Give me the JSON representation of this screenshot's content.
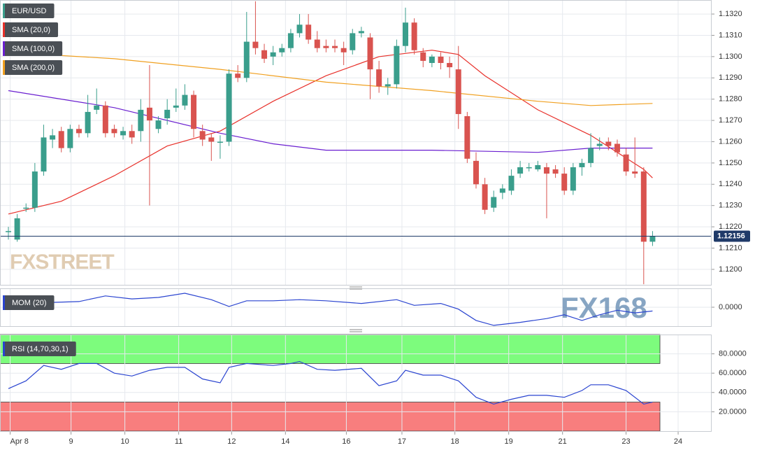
{
  "chart_data": [
    {
      "type": "candlestick",
      "name": "EUR/USD",
      "up_color": "#3a9e8c",
      "down_color": "#d9534f",
      "open": [
        1.1218,
        1.1214,
        1.1229,
        1.1229,
        1.1246,
        1.1261,
        1.1265,
        1.1257,
        1.1266,
        1.1264,
        1.1275,
        1.1277,
        1.1266,
        1.1263,
        1.1265,
        1.1265,
        1.1276,
        1.1266,
        1.1271,
        1.1276,
        1.1277,
        1.1282,
        1.1265,
        1.1262,
        1.126,
        1.126,
        1.1292,
        1.129,
        1.1307,
        1.1303,
        1.13,
        1.1302,
        1.1304,
        1.1311,
        1.1315,
        1.1308,
        1.1305,
        1.1305,
        1.1304,
        1.1303,
        1.1311,
        1.1309,
        1.1294,
        1.1286,
        1.1287,
        1.1305,
        1.1316,
        1.1302,
        1.1297,
        1.13,
        1.1297,
        1.1294,
        1.1272,
        1.1251,
        1.124,
        1.1229,
        1.1236,
        1.1237,
        1.1245,
        1.1248,
        1.1247,
        1.1248,
        1.1247,
        1.1245,
        1.1237,
        1.1248,
        1.125,
        1.1258,
        1.126,
        1.1259,
        1.1254,
        1.1246,
        1.1246,
        1.1213
      ],
      "high": [
        1.122,
        1.1226,
        1.1231,
        1.125,
        1.1268,
        1.1266,
        1.1267,
        1.1268,
        1.1268,
        1.1282,
        1.1285,
        1.1279,
        1.1268,
        1.1267,
        1.1268,
        1.128,
        1.1296,
        1.1272,
        1.128,
        1.1285,
        1.1287,
        1.1284,
        1.1268,
        1.1264,
        1.1263,
        1.1294,
        1.1296,
        1.1321,
        1.1326,
        1.1306,
        1.1305,
        1.1306,
        1.1313,
        1.132,
        1.132,
        1.1312,
        1.1308,
        1.1308,
        1.1307,
        1.1313,
        1.1314,
        1.1311,
        1.1298,
        1.129,
        1.1308,
        1.1323,
        1.1318,
        1.1304,
        1.1301,
        1.1302,
        1.13,
        1.1305,
        1.1274,
        1.1255,
        1.1243,
        1.1237,
        1.124,
        1.1247,
        1.1251,
        1.125,
        1.1251,
        1.125,
        1.1249,
        1.1248,
        1.125,
        1.1252,
        1.1264,
        1.1262,
        1.1262,
        1.1261,
        1.1257,
        1.1262,
        1.1248,
        1.1218
      ],
      "low": [
        1.1214,
        1.1213,
        1.1227,
        1.1227,
        1.1244,
        1.1257,
        1.1255,
        1.1255,
        1.1262,
        1.1262,
        1.1273,
        1.1262,
        1.1262,
        1.1261,
        1.1259,
        1.126,
        1.123,
        1.1264,
        1.1268,
        1.1274,
        1.1275,
        1.1262,
        1.1258,
        1.1251,
        1.1252,
        1.1258,
        1.1288,
        1.1288,
        1.1301,
        1.1297,
        1.1296,
        1.13,
        1.1302,
        1.1309,
        1.1306,
        1.1302,
        1.1302,
        1.1302,
        1.1296,
        1.1301,
        1.1309,
        1.128,
        1.1283,
        1.1282,
        1.1285,
        1.1302,
        1.1301,
        1.1295,
        1.1295,
        1.1294,
        1.129,
        1.1266,
        1.125,
        1.1238,
        1.1226,
        1.1227,
        1.1233,
        1.1235,
        1.1243,
        1.1246,
        1.1246,
        1.1224,
        1.1243,
        1.1235,
        1.1235,
        1.1244,
        1.1248,
        1.1256,
        1.1256,
        1.1253,
        1.1244,
        1.1243,
        1.1193,
        1.1211
      ],
      "close": [
        1.1218,
        1.1224,
        1.1229,
        1.1246,
        1.1262,
        1.1263,
        1.1257,
        1.1266,
        1.1264,
        1.1274,
        1.1277,
        1.1264,
        1.1264,
        1.1265,
        1.1262,
        1.1275,
        1.127,
        1.127,
        1.1275,
        1.1277,
        1.1282,
        1.1266,
        1.1261,
        1.126,
        1.126,
        1.1292,
        1.129,
        1.1307,
        1.1304,
        1.1299,
        1.1302,
        1.1304,
        1.1311,
        1.1315,
        1.1308,
        1.1304,
        1.1304,
        1.1304,
        1.1302,
        1.1311,
        1.1312,
        1.1294,
        1.1286,
        1.1287,
        1.1305,
        1.1316,
        1.1303,
        1.1298,
        1.13,
        1.1297,
        1.1295,
        1.1273,
        1.1252,
        1.124,
        1.1228,
        1.1234,
        1.1238,
        1.1244,
        1.1248,
        1.1248,
        1.1249,
        1.1245,
        1.1245,
        1.1237,
        1.1248,
        1.125,
        1.1257,
        1.1259,
        1.1258,
        1.1255,
        1.1246,
        1.1245,
        1.1213,
        1.12156
      ],
      "overlays": [
        {
          "name": "SMA (20,0)",
          "color": "#e8302a",
          "x": [
            0,
            6,
            12,
            18,
            24,
            30,
            36,
            42,
            48,
            51,
            54,
            60,
            66,
            72,
            73
          ],
          "values": [
            1.1226,
            1.1232,
            1.1244,
            1.1258,
            1.1265,
            1.1279,
            1.1291,
            1.13,
            1.1303,
            1.1301,
            1.1291,
            1.1275,
            1.1263,
            1.1247,
            1.1243
          ]
        },
        {
          "name": "SMA (100,0)",
          "color": "#6a1fd0",
          "x": [
            0,
            12,
            24,
            30,
            36,
            48,
            60,
            66,
            73
          ],
          "values": [
            1.1284,
            1.1276,
            1.1264,
            1.1259,
            1.1256,
            1.1256,
            1.1255,
            1.1257,
            1.1257
          ]
        },
        {
          "name": "SMA (200,0)",
          "color": "#f0a020",
          "x": [
            0,
            12,
            24,
            36,
            48,
            60,
            66,
            73
          ],
          "values": [
            1.1302,
            1.1299,
            1.1294,
            1.1288,
            1.1284,
            1.1279,
            1.1277,
            1.1278
          ]
        }
      ],
      "last_price": 1.12156,
      "xlim": [
        -0.95,
        79.7
      ],
      "ylim": [
        1.11924,
        1.13266
      ],
      "yticks": [
        {
          "value": 1.12,
          "label": "1.1200"
        },
        {
          "value": 1.121,
          "label": "1.1210"
        },
        {
          "value": 1.122,
          "label": "1.1220"
        },
        {
          "value": 1.123,
          "label": "1.1230"
        },
        {
          "value": 1.124,
          "label": "1.1240"
        },
        {
          "value": 1.125,
          "label": "1.1250"
        },
        {
          "value": 1.126,
          "label": "1.1260"
        },
        {
          "value": 1.127,
          "label": "1.1270"
        },
        {
          "value": 1.128,
          "label": "1.1280"
        },
        {
          "value": 1.129,
          "label": "1.1290"
        },
        {
          "value": 1.13,
          "label": "1.1300"
        },
        {
          "value": 1.131,
          "label": "1.1310"
        },
        {
          "value": 1.132,
          "label": "1.1320"
        }
      ],
      "xticks": [
        {
          "value": 0.2,
          "label": "Apr 8"
        },
        {
          "value": 7.1,
          "label": "9"
        },
        {
          "value": 13.2,
          "label": "10"
        },
        {
          "value": 19.3,
          "label": "11"
        },
        {
          "value": 25.3,
          "label": "12"
        },
        {
          "value": 31.4,
          "label": "14"
        },
        {
          "value": 38.3,
          "label": "16"
        },
        {
          "value": 44.6,
          "label": "17"
        },
        {
          "value": 50.6,
          "label": "18"
        },
        {
          "value": 56.7,
          "label": "19"
        },
        {
          "value": 62.8,
          "label": "21"
        },
        {
          "value": 70.0,
          "label": "23"
        },
        {
          "value": 75.9,
          "label": "24"
        }
      ],
      "watermark": "FXSTREET"
    },
    {
      "type": "line",
      "name": "MOM (20)",
      "color": "#2a44d0",
      "x": [
        0,
        4,
        8,
        11,
        14,
        17,
        20,
        23,
        25,
        27,
        30,
        33,
        36,
        40,
        44,
        46,
        49,
        51,
        53,
        55,
        58,
        61,
        63,
        65,
        67,
        69,
        71,
        73
      ],
      "values": [
        0.0013,
        0.0012,
        0.0015,
        0.003,
        0.0022,
        0.0026,
        0.0037,
        0.002,
        0.0002,
        0.0017,
        0.0017,
        0.002,
        0.0017,
        0.001,
        0.002,
        0.0005,
        0.001,
        -0.0005,
        -0.0035,
        -0.0048,
        -0.004,
        -0.003,
        -0.002,
        -0.0035,
        -0.002,
        -0.0008,
        -0.0015,
        -0.001
      ],
      "xlim": [
        -0.95,
        79.7
      ],
      "ylim": [
        -0.005,
        0.005
      ],
      "yticks": [
        {
          "value": 0,
          "label": "0.0000"
        }
      ],
      "watermark": "FX168"
    },
    {
      "type": "line",
      "name": "RSI (14,70,30,1)",
      "color": "#2a44d0",
      "x": [
        0,
        2,
        4,
        6,
        8,
        10,
        12,
        14,
        16,
        18,
        20,
        22,
        24,
        25,
        27,
        30,
        32,
        33,
        35,
        37,
        40,
        42,
        44,
        45,
        47,
        49,
        51,
        53,
        55,
        57,
        59,
        61,
        63,
        65,
        66,
        68,
        70,
        72,
        73
      ],
      "values": [
        44,
        52,
        68,
        64,
        70,
        70,
        60,
        57,
        63,
        66,
        66,
        54,
        50,
        66,
        70,
        68,
        70,
        72,
        64,
        63,
        65,
        47,
        52,
        63,
        58,
        58,
        52,
        35,
        28,
        33,
        37,
        37,
        35,
        42,
        48,
        48,
        42,
        28,
        30
      ],
      "bands": [
        {
          "from": 70,
          "to": 100,
          "color": "#7dfc7d"
        },
        {
          "from": 0,
          "to": 30,
          "color": "#f87e7e"
        }
      ],
      "xlim": [
        -0.95,
        79.7
      ],
      "ylim": [
        0,
        100
      ],
      "yticks": [
        {
          "value": 20,
          "label": "20.0000"
        },
        {
          "value": 40,
          "label": "40.0000"
        },
        {
          "value": 60,
          "label": "60.0000"
        },
        {
          "value": 80,
          "label": "80.0000"
        }
      ]
    }
  ]
}
